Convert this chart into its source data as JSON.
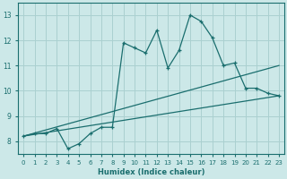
{
  "xlabel": "Humidex (Indice chaleur)",
  "bg_color": "#cce8e8",
  "grid_color": "#aad0d0",
  "line_color": "#1a6e6e",
  "xlim": [
    -0.5,
    23.5
  ],
  "ylim": [
    7.5,
    13.5
  ],
  "xticks": [
    0,
    1,
    2,
    3,
    4,
    5,
    6,
    7,
    8,
    9,
    10,
    11,
    12,
    13,
    14,
    15,
    16,
    17,
    18,
    19,
    20,
    21,
    22,
    23
  ],
  "yticks": [
    8,
    9,
    10,
    11,
    12,
    13
  ],
  "line1_x": [
    0,
    1,
    2,
    3,
    4,
    5,
    6,
    7,
    8,
    9,
    10,
    11,
    12,
    13,
    14,
    15,
    16,
    17,
    18,
    19,
    20,
    21,
    22,
    23
  ],
  "line1_y": [
    8.2,
    8.3,
    8.3,
    8.5,
    7.7,
    7.9,
    8.3,
    8.55,
    8.55,
    11.9,
    11.7,
    11.5,
    12.4,
    10.9,
    11.6,
    13.0,
    12.75,
    12.1,
    11.0,
    11.1,
    10.1,
    10.1,
    9.9,
    9.8
  ],
  "line2_x": [
    0,
    23
  ],
  "line2_y": [
    8.2,
    9.8
  ],
  "line3_x": [
    0,
    23
  ],
  "line3_y": [
    8.2,
    11.0
  ]
}
